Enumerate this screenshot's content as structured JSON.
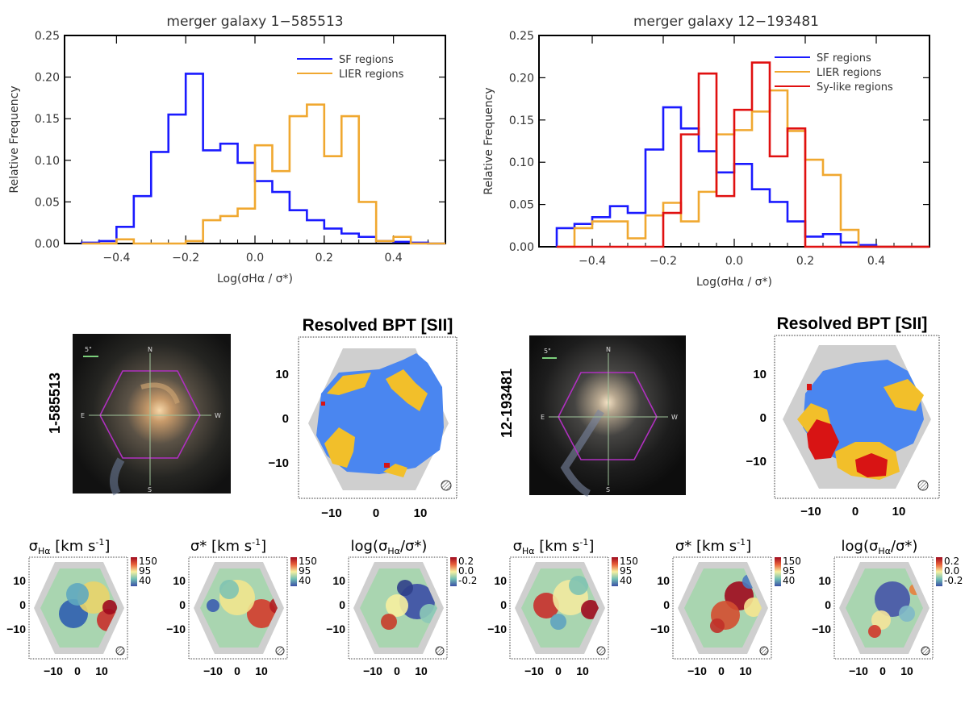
{
  "chart_data": [
    {
      "type": "histogram",
      "title": "merger galaxy 1−585513",
      "xlabel": "Log(σHα / σ*)",
      "ylabel": "Relative Frequency",
      "xlim": [
        -0.55,
        0.55
      ],
      "ylim": [
        0,
        0.25
      ],
      "xticks": [
        "−0.4",
        "−0.2",
        "0.0",
        "0.2",
        "0.4"
      ],
      "yticks": [
        "0.00",
        "0.05",
        "0.10",
        "0.15",
        "0.20",
        "0.25"
      ],
      "bin_edges": [
        -0.5,
        -0.45,
        -0.4,
        -0.35,
        -0.3,
        -0.25,
        -0.2,
        -0.15,
        -0.1,
        -0.05,
        0.0,
        0.05,
        0.1,
        0.15,
        0.2,
        0.25,
        0.3,
        0.35,
        0.4,
        0.45,
        0.5,
        0.55
      ],
      "series": [
        {
          "name": "SF regions",
          "color": "#1a1aff",
          "values": [
            0.001,
            0.003,
            0.02,
            0.057,
            0.11,
            0.155,
            0.204,
            0.112,
            0.12,
            0.097,
            0.075,
            0.062,
            0.04,
            0.028,
            0.018,
            0.012,
            0.008,
            0.003,
            0.002,
            0.001,
            0.0
          ]
        },
        {
          "name": "LIER regions",
          "color": "#f0a830",
          "values": [
            0.0,
            0.0,
            0.005,
            0.0,
            0.0,
            0.0,
            0.003,
            0.028,
            0.033,
            0.042,
            0.118,
            0.087,
            0.153,
            0.167,
            0.105,
            0.153,
            0.05,
            0.003,
            0.008,
            0.0,
            0.0
          ]
        }
      ]
    },
    {
      "type": "histogram",
      "title": "merger galaxy 12−193481",
      "xlabel": "Log(σHα / σ*)",
      "ylabel": "Relative Frequency",
      "xlim": [
        -0.55,
        0.55
      ],
      "ylim": [
        0,
        0.25
      ],
      "xticks": [
        "−0.4",
        "−0.2",
        "0.0",
        "0.2",
        "0.4"
      ],
      "yticks": [
        "0.00",
        "0.05",
        "0.10",
        "0.15",
        "0.20",
        "0.25"
      ],
      "bin_edges": [
        -0.5,
        -0.45,
        -0.4,
        -0.35,
        -0.3,
        -0.25,
        -0.2,
        -0.15,
        -0.1,
        -0.05,
        0.0,
        0.05,
        0.1,
        0.15,
        0.2,
        0.25,
        0.3,
        0.35,
        0.4,
        0.45,
        0.5,
        0.55
      ],
      "series": [
        {
          "name": "SF regions",
          "color": "#1a1aff",
          "values": [
            0.022,
            0.027,
            0.035,
            0.048,
            0.04,
            0.115,
            0.165,
            0.14,
            0.113,
            0.088,
            0.098,
            0.068,
            0.053,
            0.03,
            0.012,
            0.015,
            0.005,
            0.002,
            0.0,
            0.0,
            0.0
          ]
        },
        {
          "name": "LIER regions",
          "color": "#f0a830",
          "values": [
            0.0,
            0.022,
            0.03,
            0.03,
            0.01,
            0.037,
            0.052,
            0.03,
            0.065,
            0.133,
            0.138,
            0.16,
            0.185,
            0.137,
            0.103,
            0.085,
            0.02,
            0.0,
            0.0,
            0.0,
            0.0
          ]
        },
        {
          "name": "Sy-like regions",
          "color": "#e01010",
          "values": [
            0.0,
            0.0,
            0.0,
            0.0,
            0.0,
            0.0,
            0.04,
            0.133,
            0.205,
            0.06,
            0.162,
            0.218,
            0.107,
            0.14,
            0.0,
            0.0,
            0.0,
            0.0,
            0.0,
            0.0,
            0.0
          ]
        }
      ]
    }
  ],
  "galaxies": [
    {
      "id": "1-585513",
      "bpt_title": "Resolved BPT [SII]",
      "compass": {
        "n": "N",
        "s": "S",
        "e": "E",
        "w": "W"
      },
      "scale": "5\"",
      "bpt_ticks": [
        "10",
        "0",
        "−10"
      ],
      "bpt_xticks": [
        "−10",
        "0",
        "10"
      ]
    },
    {
      "id": "12-193481",
      "bpt_title": "Resolved BPT [SII]",
      "compass": {
        "n": "N",
        "s": "S",
        "e": "E",
        "w": "W"
      },
      "scale": "5\"",
      "bpt_ticks": [
        "10",
        "0",
        "−10"
      ],
      "bpt_xticks": [
        "−10",
        "0",
        "10"
      ]
    }
  ],
  "maps": [
    {
      "title_main": "σ",
      "title_sub": "Hα",
      "title_rest": " [km s",
      "title_sup": "-1",
      "title_end": "]",
      "cbar": [
        "150",
        "95",
        "40"
      ]
    },
    {
      "title_main": "σ",
      "title_sub": "",
      "title_rest": "* [km s",
      "title_sup": "-1",
      "title_end": "]",
      "cbar": [
        "150",
        "95",
        "40"
      ]
    },
    {
      "title_main": "log(σ",
      "title_sub": "Hα",
      "title_rest": "/σ*)",
      "title_sup": "",
      "title_end": "",
      "cbar": [
        "0.2",
        "0.0",
        "-0.2"
      ]
    },
    {
      "title_main": "σ",
      "title_sub": "Hα",
      "title_rest": " [km s",
      "title_sup": "-1",
      "title_end": "]",
      "cbar": [
        "150",
        "95",
        "40"
      ]
    },
    {
      "title_main": "σ",
      "title_sub": "",
      "title_rest": "* [km s",
      "title_sup": "-1",
      "title_end": "]",
      "cbar": [
        "150",
        "95",
        "40"
      ]
    },
    {
      "title_main": "log(σ",
      "title_sub": "Hα",
      "title_rest": "/σ*)",
      "title_sup": "",
      "title_end": "",
      "cbar": [
        "0.2",
        "0.0",
        "-0.2"
      ]
    }
  ],
  "map_ticks": {
    "y": [
      "10",
      "0",
      "−10"
    ],
    "x": [
      "−10",
      "0",
      "10"
    ]
  },
  "colors": {
    "sf": "#4a86f0",
    "lier": "#f2bf2a",
    "sy": "#d81414",
    "bg": "#cfcfcf"
  }
}
